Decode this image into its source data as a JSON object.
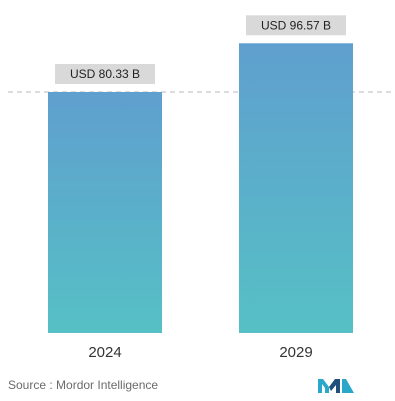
{
  "chart_data": {
    "type": "bar",
    "title": "",
    "xlabel": "",
    "ylabel": "",
    "categories": [
      "2024",
      "2029"
    ],
    "values": [
      80.33,
      96.57
    ],
    "data_labels": [
      "USD 80.33 B",
      "USD 96.57 B"
    ],
    "reference_line": {
      "value": 80.33,
      "style": "dashed"
    },
    "ylim": [
      0,
      100
    ],
    "grid": false,
    "legend": "none",
    "colors": {
      "bar_top": "#5f9fcf",
      "bar_bottom": "#56c0c5",
      "label_box": "#d9d9d9",
      "reference_line": "#b9b9b9",
      "tick_text": "#333333"
    }
  },
  "footer": {
    "source_text": "Source :  Mordor Intelligence",
    "logo_icon": "mordor-intelligence-logo-icon",
    "logo_colors": [
      "#2aa8c9",
      "#1f4f7a"
    ]
  }
}
